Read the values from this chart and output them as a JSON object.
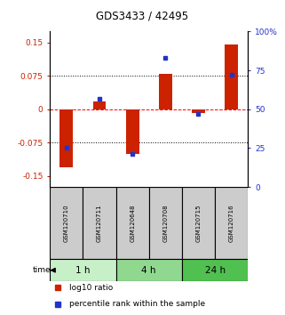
{
  "title": "GDS3433 / 42495",
  "samples": [
    "GSM120710",
    "GSM120711",
    "GSM120648",
    "GSM120708",
    "GSM120715",
    "GSM120716"
  ],
  "log10_ratio": [
    -0.13,
    0.018,
    -0.1,
    0.08,
    -0.008,
    0.145
  ],
  "percentile_rank": [
    25,
    57,
    21,
    83,
    47,
    72
  ],
  "time_groups": [
    {
      "label": "1 h",
      "cols": [
        0,
        1
      ],
      "color": "#c8f0c8"
    },
    {
      "label": "4 h",
      "cols": [
        2,
        3
      ],
      "color": "#90d890"
    },
    {
      "label": "24 h",
      "cols": [
        4,
        5
      ],
      "color": "#50c050"
    }
  ],
  "bar_color": "#cc2200",
  "dot_color": "#2233cc",
  "ylim_left": [
    -0.175,
    0.175
  ],
  "ylim_right": [
    0,
    100
  ],
  "yticks_left": [
    -0.15,
    -0.075,
    0,
    0.075,
    0.15
  ],
  "yticks_right": [
    0,
    25,
    50,
    75,
    100
  ],
  "ytick_labels_left": [
    "-0.15",
    "-0.075",
    "0",
    "0.075",
    "0.15"
  ],
  "ytick_labels_right": [
    "0",
    "25",
    "50",
    "75",
    "100%"
  ],
  "hlines": [
    -0.075,
    0,
    0.075
  ],
  "hline_styles": [
    "dotted",
    "dashed",
    "dotted"
  ],
  "hline_colors": [
    "black",
    "red",
    "black"
  ],
  "bar_width": 0.4,
  "background_color": "#ffffff",
  "plot_bg_color": "#ffffff",
  "sample_box_color": "#cccccc",
  "title_color": "#000000"
}
